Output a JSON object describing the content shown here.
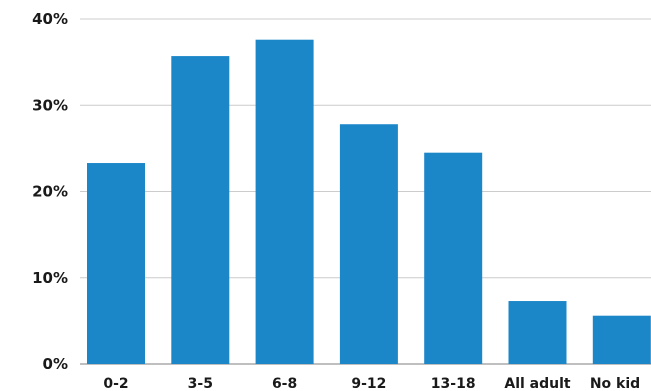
{
  "chart_data": {
    "type": "bar",
    "categories": [
      "0-2",
      "3-5",
      "6-8",
      "9-12",
      "13-18",
      "All adult",
      "No kid"
    ],
    "values": [
      23.3,
      35.7,
      37.6,
      27.8,
      24.5,
      7.3,
      5.6
    ],
    "yticks": [
      "0%",
      "10%",
      "20%",
      "30%",
      "40%"
    ],
    "ytick_values": [
      0,
      10,
      20,
      30,
      40
    ],
    "ylim": [
      0,
      40
    ],
    "grid": true,
    "bar_color": "#1b87c9",
    "title": "",
    "xlabel": "",
    "ylabel": ""
  }
}
